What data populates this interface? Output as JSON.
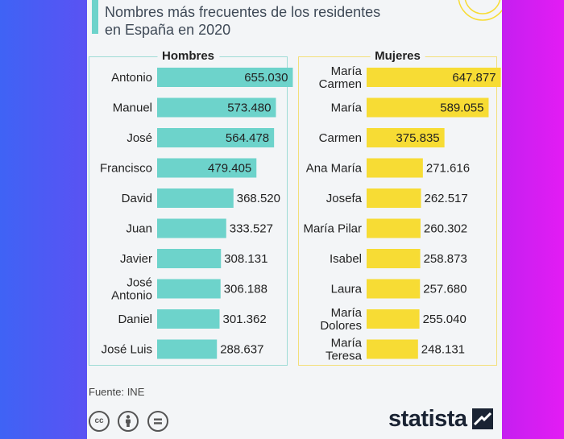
{
  "title": "Nombres más frecuentes de los residentes en España en 2020",
  "source": "Fuente: INE",
  "brand": "statista",
  "license_icons": [
    "cc-icon",
    "by-person-icon",
    "nd-equals-icon"
  ],
  "colors": {
    "men": "#6dd3cb",
    "women": "#f7dc34",
    "men_border": "#9fdcd6",
    "women_border": "#f3df7a"
  },
  "chart_data": [
    {
      "type": "bar",
      "orientation": "horizontal",
      "title": "Hombres",
      "categories": [
        [
          "Antonio"
        ],
        [
          "Manuel"
        ],
        [
          "José"
        ],
        [
          "Francisco"
        ],
        [
          "David"
        ],
        [
          "Juan"
        ],
        [
          "Javier"
        ],
        [
          "José",
          "Antonio"
        ],
        [
          "Daniel"
        ],
        [
          "José Luis"
        ]
      ],
      "values": [
        655030,
        573480,
        564478,
        479405,
        368520,
        333527,
        308131,
        306188,
        301362,
        288637
      ],
      "value_labels": [
        "655.030",
        "573.480",
        "564.478",
        "479.405",
        "368.520",
        "333.527",
        "308.131",
        "306.188",
        "301.362",
        "288.637"
      ],
      "xlim": [
        0,
        700000
      ]
    },
    {
      "type": "bar",
      "orientation": "horizontal",
      "title": "Mujeres",
      "categories": [
        [
          "María",
          "Carmen"
        ],
        [
          "María"
        ],
        [
          "Carmen"
        ],
        [
          "Ana María"
        ],
        [
          "Josefa"
        ],
        [
          "María Pilar"
        ],
        [
          "Isabel"
        ],
        [
          "Laura"
        ],
        [
          "María",
          "Dolores"
        ],
        [
          "María",
          "Teresa"
        ]
      ],
      "values": [
        647877,
        589055,
        375835,
        271616,
        262517,
        260302,
        258873,
        257680,
        255040,
        248131
      ],
      "value_labels": [
        "647.877",
        "589.055",
        "375.835",
        "271.616",
        "262.517",
        "260.302",
        "258.873",
        "257.680",
        "255.040",
        "248.131"
      ],
      "xlim": [
        0,
        700000
      ]
    }
  ]
}
